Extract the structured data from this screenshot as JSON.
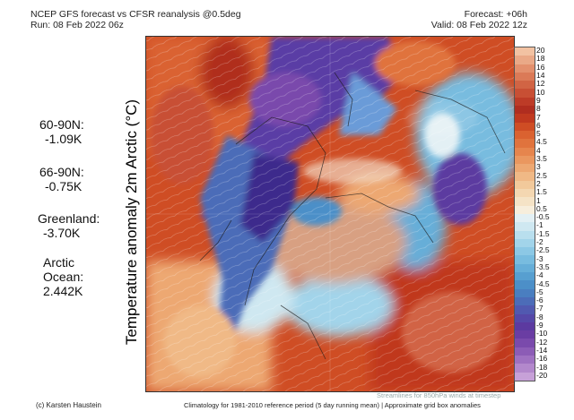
{
  "header": {
    "title": "NCEP GFS forecast vs CFSR reanalysis @0.5deg",
    "run": "Run: 08 Feb 2022 06z",
    "forecast": "Forecast: +06h",
    "valid": "Valid: 08 Feb 2022 12z"
  },
  "stats": [
    {
      "lines": [
        "60-90N:",
        "-1.09K"
      ]
    },
    {
      "lines": [
        "66-90N:",
        "-0.75K"
      ]
    },
    {
      "lines": [
        "Greenland:",
        "-3.70K"
      ]
    },
    {
      "lines": [
        "Arctic",
        "Ocean:",
        "2.442K"
      ]
    }
  ],
  "axis_label": "Temperature anomaly 2m Arctic (°C)",
  "colorbar": {
    "ticks": [
      "20",
      "18",
      "16",
      "14",
      "12",
      "10",
      "9",
      "8",
      "7",
      "6",
      "5",
      "4.5",
      "4",
      "3.5",
      "3",
      "2.5",
      "2",
      "1.5",
      "1",
      "0.5",
      "-0.5",
      "-1",
      "-1.5",
      "-2",
      "-2.5",
      "-3",
      "-3.5",
      "-4",
      "-4.5",
      "-5",
      "-6",
      "-7",
      "-8",
      "-9",
      "-10",
      "-12",
      "-14",
      "-16",
      "-18",
      "-20"
    ],
    "colors": [
      "#f2c2a2",
      "#eaa987",
      "#e3906d",
      "#db7a57",
      "#d16444",
      "#c84f34",
      "#bd3b27",
      "#b02d1f",
      "#c0391f",
      "#cf4d24",
      "#da6230",
      "#e0733d",
      "#e6854d",
      "#ea975f",
      "#eda872",
      "#f0b986",
      "#f2c99b",
      "#f4d7b1",
      "#f5e3c6",
      "#f7eedc",
      "#e3f0f4",
      "#cfe8f1",
      "#b9dfee",
      "#a2d4ea",
      "#8cc8e5",
      "#78bcdf",
      "#66aed8",
      "#579fd0",
      "#4c8fc8",
      "#4a7ec0",
      "#4c6cb8",
      "#5159b0",
      "#5648a8",
      "#5c3aa0",
      "#6a3da3",
      "#7a4aac",
      "#8c5cb6",
      "#9f71c1",
      "#b388cc",
      "#c7a1d8"
    ]
  },
  "footer": {
    "credit": "(c) Karsten Haustein",
    "climatology": "Climatology for 1981-2010 reference period (5 day running mean) | Approximate grid box anomalies",
    "streamlines": "Streamlines for 850hPa winds at timestep"
  }
}
